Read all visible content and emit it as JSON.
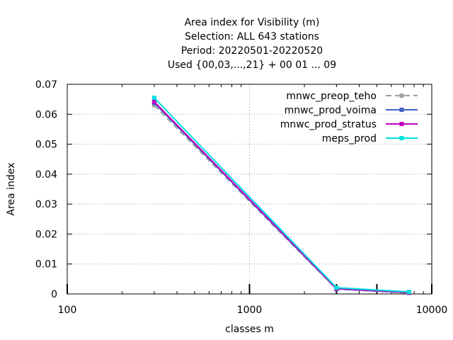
{
  "chart_data": {
    "type": "line",
    "title_lines": [
      "Area index  for Visibility (m)",
      "Selection: ALL    643 stations",
      "Period: 20220501-20220520",
      "Used {00,03,...,21} + 00 01 ... 09"
    ],
    "xlabel": "classes m",
    "ylabel": "Area index",
    "x_scale": "log",
    "xlim": [
      100,
      10000
    ],
    "ylim": [
      0,
      0.07
    ],
    "x_ticks": [
      100,
      1000,
      10000
    ],
    "x_tick_labels": [
      "100",
      "1000",
      "10000"
    ],
    "y_ticks": [
      0,
      0.01,
      0.02,
      0.03,
      0.04,
      0.05,
      0.06,
      0.07
    ],
    "y_tick_labels": [
      "0",
      "0.01",
      "0.02",
      "0.03",
      "0.04",
      "0.05",
      "0.06",
      "0.07"
    ],
    "grid": true,
    "legend_position": "top-right",
    "series": [
      {
        "name": "mnwc_preop_teho",
        "color": "#a0a0a0",
        "dash": "dashed",
        "points": [
          [
            300,
            0.063
          ],
          [
            3000,
            0.0016
          ],
          [
            7500,
            0.0003
          ]
        ]
      },
      {
        "name": "mnwc_prod_voima",
        "color": "#4060c8",
        "dash": "solid",
        "points": [
          [
            300,
            0.0638
          ],
          [
            3000,
            0.0017
          ],
          [
            7500,
            0.0004
          ]
        ]
      },
      {
        "name": "mnwc_prod_stratus",
        "color": "#c000c0",
        "dash": "solid",
        "points": [
          [
            300,
            0.0642
          ],
          [
            3000,
            0.0018
          ],
          [
            7500,
            0.0005
          ]
        ]
      },
      {
        "name": "meps_prod",
        "color": "#00e0e0",
        "dash": "solid",
        "points": [
          [
            300,
            0.0655
          ],
          [
            3000,
            0.0021
          ],
          [
            7500,
            0.0007
          ]
        ]
      }
    ]
  }
}
